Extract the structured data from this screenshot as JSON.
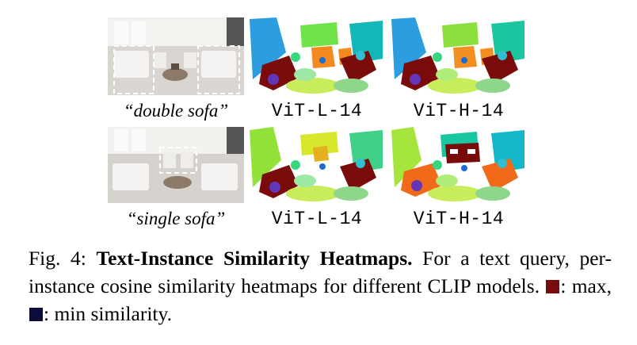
{
  "figure": {
    "rows": [
      {
        "query_label": "“double sofa”",
        "model_labels": [
          "ViT-L-14",
          "ViT-H-14"
        ]
      },
      {
        "query_label": "“single sofa”",
        "model_labels": [
          "ViT-L-14",
          "ViT-H-14"
        ]
      }
    ],
    "caption": {
      "fig_number": "Fig. 4:",
      "title": "Text-Instance Similarity Heatmaps.",
      "body": "For a text query, per-instance cosine similarity heatmaps for different CLIP models.",
      "legend_max": ": max,",
      "legend_min": ": min similarity."
    },
    "colors": {
      "max": "#7a0b0b",
      "min": "#0c0c3a",
      "box_outline": "#ffffff"
    }
  }
}
